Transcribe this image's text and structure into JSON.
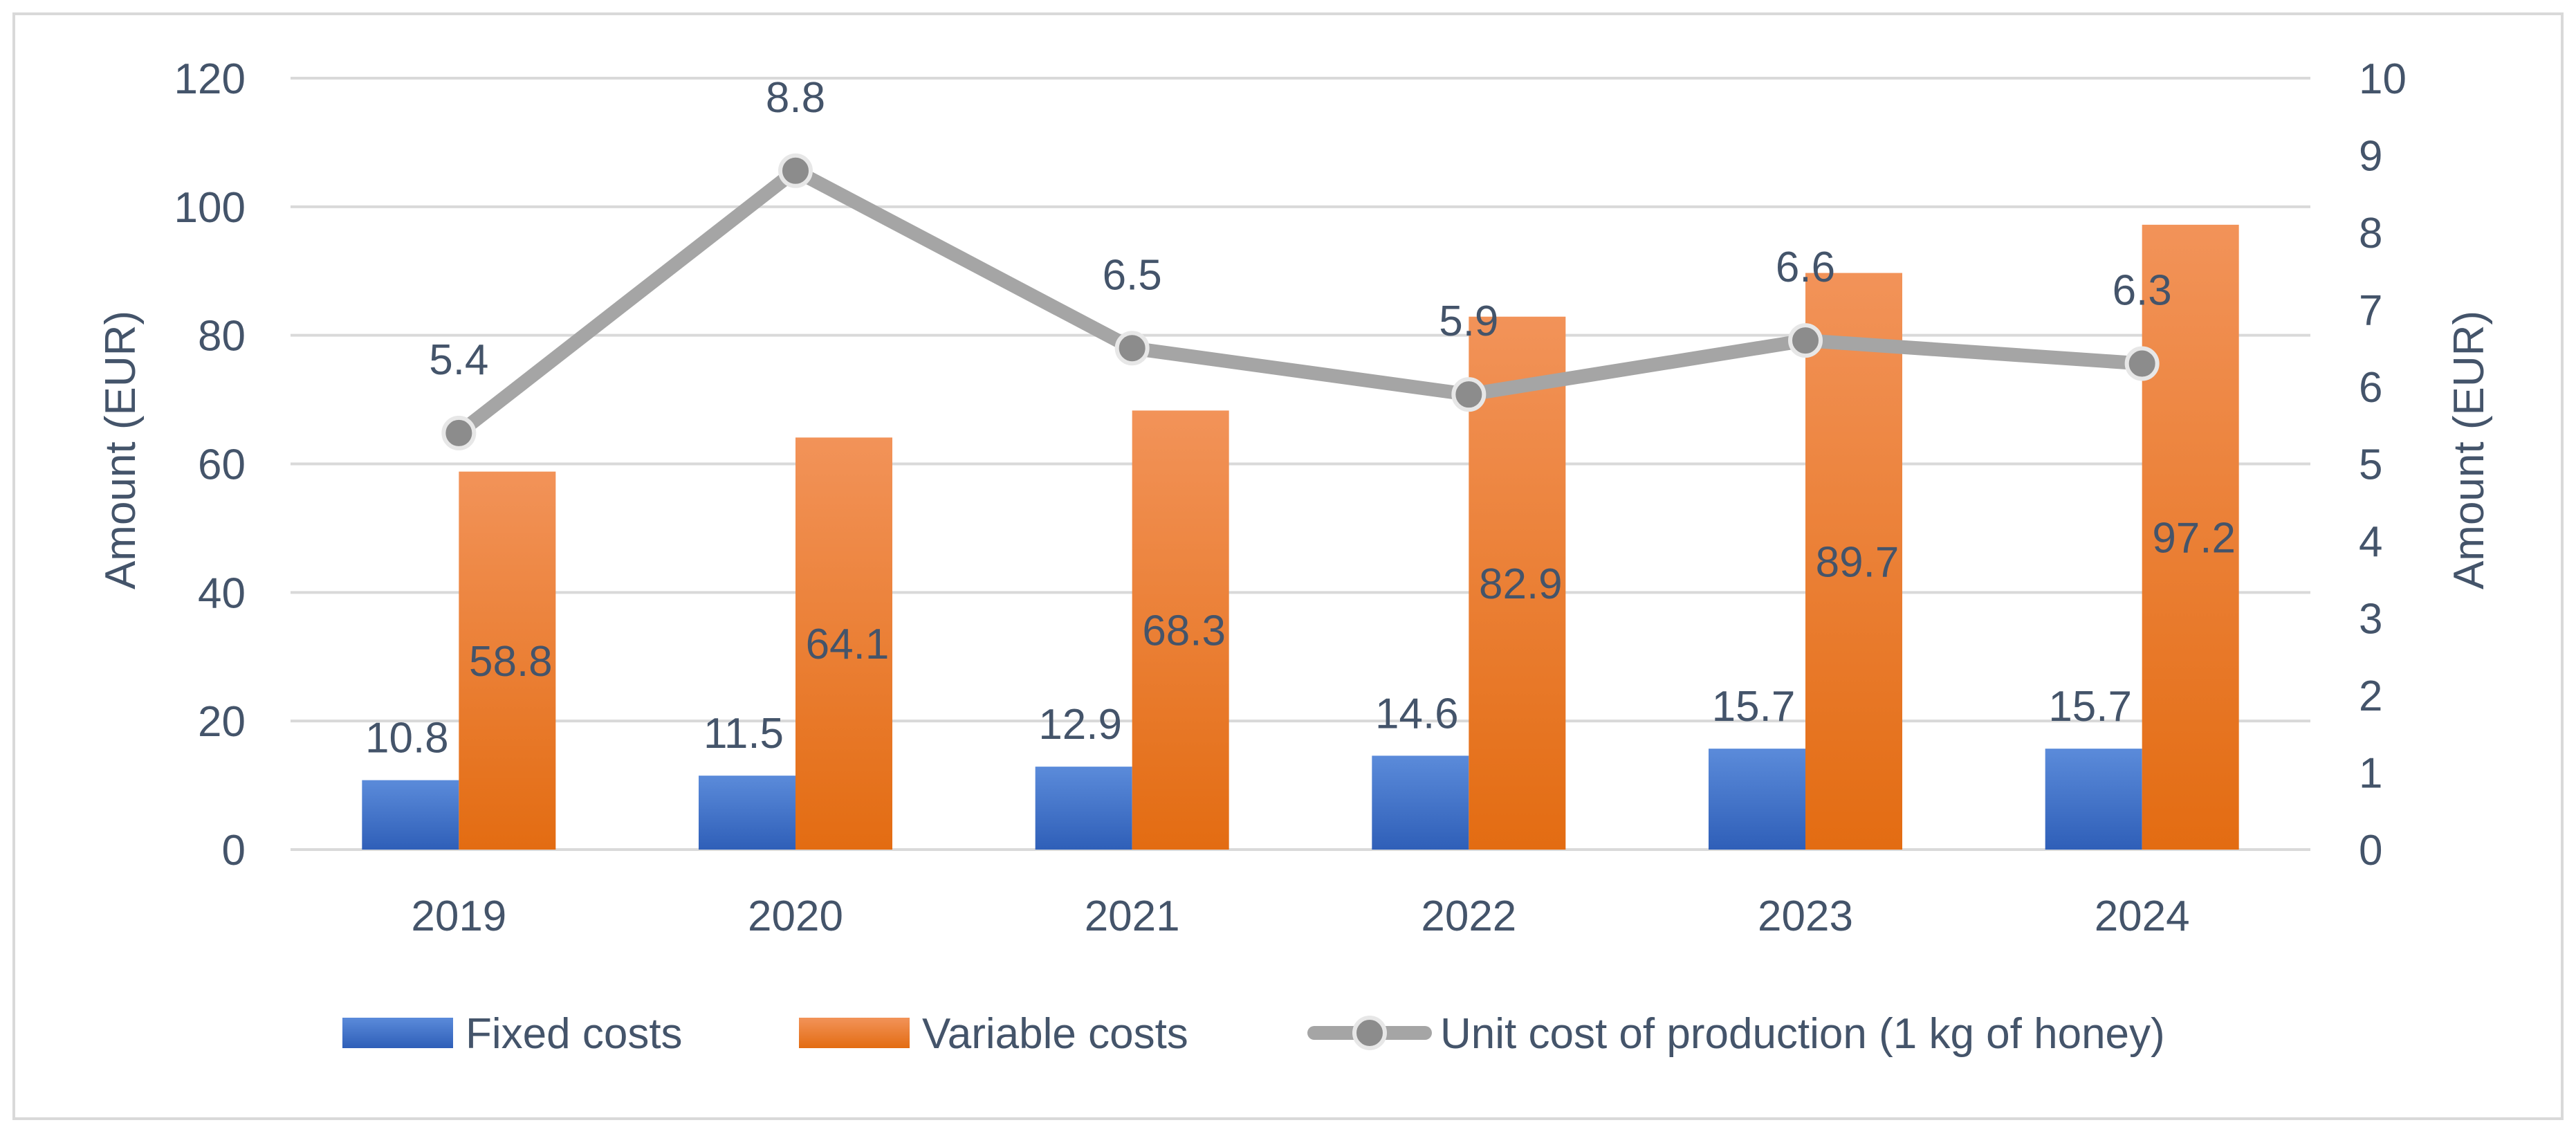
{
  "chart_data": {
    "type": "bar",
    "categories": [
      "2019",
      "2020",
      "2021",
      "2022",
      "2023",
      "2024"
    ],
    "series": [
      {
        "name": "Fixed costs",
        "type": "bar",
        "axis": "left",
        "values": [
          10.8,
          11.5,
          12.9,
          14.6,
          15.7,
          15.7
        ],
        "labels": [
          "10.8",
          "11.5",
          "12.9",
          "14.6",
          "15.7",
          "15.7"
        ],
        "color": "#4472C4"
      },
      {
        "name": "Variable costs",
        "type": "bar",
        "axis": "left",
        "values": [
          58.8,
          64.1,
          68.3,
          82.9,
          89.7,
          97.2
        ],
        "labels": [
          "58.8",
          "64.1",
          "68.3",
          "82.9",
          "89.7",
          "97.2"
        ],
        "color": "#ED7D31"
      },
      {
        "name": "Unit cost of production (1 kg of honey)",
        "type": "line",
        "axis": "right",
        "values": [
          5.4,
          8.8,
          6.5,
          5.9,
          6.6,
          6.3
        ],
        "labels": [
          "5.4",
          "8.8",
          "6.5",
          "5.9",
          "6.6",
          "6.3"
        ],
        "color": "#A5A5A5"
      }
    ],
    "ylabel": "Amount (EUR)",
    "y2label": "Amount (EUR)",
    "ylim": [
      0,
      120
    ],
    "y2lim": [
      0,
      10
    ],
    "yticks": [
      "0",
      "20",
      "40",
      "60",
      "80",
      "100",
      "120"
    ],
    "y2ticks": [
      "0",
      "1",
      "2",
      "3",
      "4",
      "5",
      "6",
      "7",
      "8",
      "9",
      "10"
    ],
    "grid": true,
    "legend": "bottom"
  },
  "colors": {
    "text": "#44546A",
    "grid": "#D9D9D9",
    "border": "#D9D9D9",
    "line": "#A5A5A5",
    "fixed_top": "#5B8BDA",
    "fixed_bottom": "#2F5FB8",
    "variable_top": "#F29359",
    "variable_bottom": "#E36C12"
  }
}
